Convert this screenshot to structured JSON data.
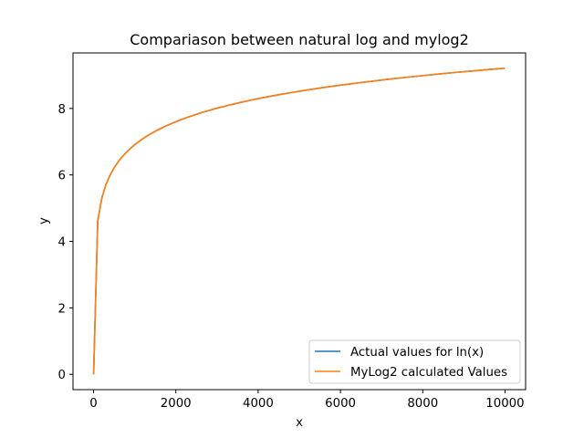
{
  "chart_data": {
    "type": "line",
    "title": "Compariason between natural log and mylog2",
    "xlabel": "x",
    "ylabel": "y",
    "xlim": [
      -500,
      10500
    ],
    "ylim": [
      -0.46,
      9.67
    ],
    "xticks": [
      0,
      2000,
      4000,
      6000,
      8000,
      10000
    ],
    "xtick_labels": [
      "0",
      "2000",
      "4000",
      "6000",
      "8000",
      "10000"
    ],
    "yticks": [
      0,
      2,
      4,
      6,
      8
    ],
    "ytick_labels": [
      "0",
      "2",
      "4",
      "6",
      "8"
    ],
    "grid": false,
    "legend_position": "lower-right",
    "series": [
      {
        "name": "Actual values for ln(x)",
        "color": "#1f77b4",
        "x": [
          1,
          101,
          201,
          301,
          401,
          501,
          601,
          701,
          801,
          901,
          1001,
          1101,
          1201,
          1301,
          1401,
          1501,
          1601,
          1701,
          1801,
          1901,
          2001,
          2201,
          2401,
          2601,
          2801,
          3001,
          3301,
          3601,
          3901,
          4201,
          4501,
          4801,
          5201,
          5601,
          6001,
          6401,
          6801,
          7201,
          7601,
          8001,
          8401,
          8801,
          9201,
          9601,
          10001
        ],
        "y": [
          0.0,
          4.615,
          5.303,
          5.707,
          5.994,
          6.217,
          6.399,
          6.553,
          6.686,
          6.803,
          6.909,
          7.004,
          7.091,
          7.171,
          7.245,
          7.314,
          7.378,
          7.439,
          7.496,
          7.55,
          7.601,
          7.697,
          7.783,
          7.864,
          7.938,
          8.007,
          8.102,
          8.189,
          8.269,
          8.343,
          8.412,
          8.476,
          8.557,
          8.631,
          8.7,
          8.764,
          8.825,
          8.882,
          8.936,
          8.987,
          9.036,
          9.083,
          9.127,
          9.17,
          9.21
        ]
      },
      {
        "name": "MyLog2 calculated Values",
        "color": "#ff7f0e",
        "x": [
          1,
          101,
          201,
          301,
          401,
          501,
          601,
          701,
          801,
          901,
          1001,
          1101,
          1201,
          1301,
          1401,
          1501,
          1601,
          1701,
          1801,
          1901,
          2001,
          2201,
          2401,
          2601,
          2801,
          3001,
          3301,
          3601,
          3901,
          4201,
          4501,
          4801,
          5201,
          5601,
          6001,
          6401,
          6801,
          7201,
          7601,
          8001,
          8401,
          8801,
          9201,
          9601,
          10001
        ],
        "y": [
          0.0,
          4.615,
          5.303,
          5.707,
          5.994,
          6.217,
          6.399,
          6.553,
          6.686,
          6.803,
          6.909,
          7.004,
          7.091,
          7.171,
          7.245,
          7.314,
          7.378,
          7.439,
          7.496,
          7.55,
          7.601,
          7.697,
          7.783,
          7.864,
          7.938,
          8.007,
          8.102,
          8.189,
          8.269,
          8.343,
          8.412,
          8.476,
          8.557,
          8.631,
          8.7,
          8.764,
          8.825,
          8.882,
          8.936,
          8.987,
          9.036,
          9.083,
          9.127,
          9.17,
          9.21
        ]
      }
    ]
  }
}
